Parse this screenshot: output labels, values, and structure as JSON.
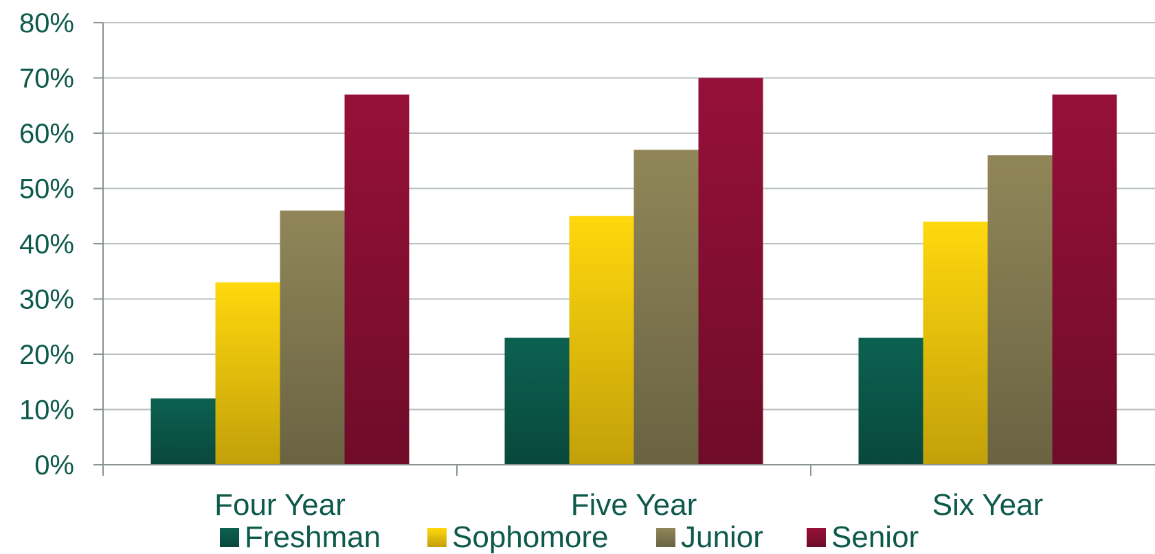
{
  "chart_data": {
    "type": "bar",
    "categories": [
      "Four Year",
      "Five Year",
      "Six Year"
    ],
    "series": [
      {
        "name": "Freshman",
        "values": [
          12,
          23,
          23
        ],
        "color": "#0b5a4b"
      },
      {
        "name": "Sophomore",
        "values": [
          33,
          45,
          44
        ],
        "color": "#f2c80c"
      },
      {
        "name": "Junior",
        "values": [
          46,
          57,
          56
        ],
        "color": "#857c52"
      },
      {
        "name": "Senior",
        "values": [
          67,
          70,
          67
        ],
        "color": "#8b0f35"
      }
    ],
    "y_ticks": [
      "0%",
      "10%",
      "20%",
      "30%",
      "40%",
      "50%",
      "60%",
      "70%",
      "80%"
    ],
    "ylim": [
      0,
      80
    ],
    "grid": true,
    "legend_position": "bottom"
  }
}
